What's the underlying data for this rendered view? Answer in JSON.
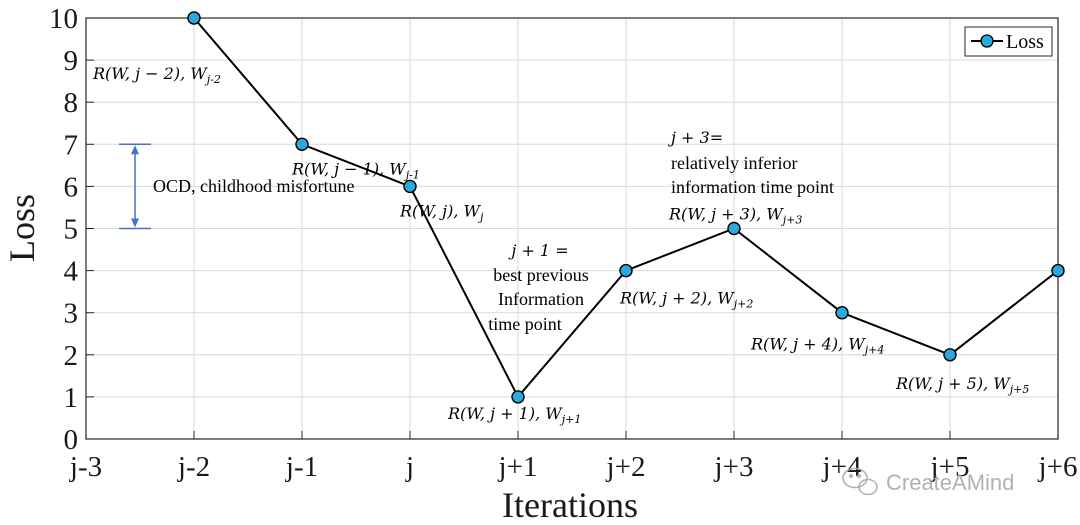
{
  "chart_data": {
    "type": "line",
    "xlabel": "Iterations",
    "ylabel": "Loss",
    "categories": [
      "j-3",
      "j-2",
      "j-1",
      "j",
      "j+1",
      "j+2",
      "j+3",
      "j+4",
      "j+5",
      "j+6"
    ],
    "ylim": [
      0,
      10
    ],
    "yticks": [
      0,
      1,
      2,
      3,
      4,
      5,
      6,
      7,
      8,
      9,
      10
    ],
    "grid": true,
    "legend_position": "top-right",
    "series": [
      {
        "name": "Loss",
        "color": "#29a9e0",
        "points": [
          {
            "x": "j-2",
            "y": 10
          },
          {
            "x": "j-1",
            "y": 7
          },
          {
            "x": "j",
            "y": 6
          },
          {
            "x": "j+1",
            "y": 1
          },
          {
            "x": "j+2",
            "y": 4
          },
          {
            "x": "j+3",
            "y": 5
          },
          {
            "x": "j+4",
            "y": 3
          },
          {
            "x": "j+5",
            "y": 2
          },
          {
            "x": "j+6",
            "y": 4
          }
        ]
      }
    ],
    "point_labels": [
      {
        "x": "j-2",
        "text": "R(W, j − 2), W",
        "sub": "j-2"
      },
      {
        "x": "j-1",
        "text": "R(W, j − 1), W",
        "sub": "j-1"
      },
      {
        "x": "j",
        "text": "R(W, j), W",
        "sub": "j"
      },
      {
        "x": "j+1",
        "text": "R(W, j + 1), W",
        "sub": "j+1"
      },
      {
        "x": "j+2",
        "text": "R(W, j + 2), W",
        "sub": "j+2"
      },
      {
        "x": "j+3",
        "text": "R(W, j + 3), W",
        "sub": "j+3"
      },
      {
        "x": "j+4",
        "text": "R(W, j + 4), W",
        "sub": "j+4"
      },
      {
        "x": "j+5",
        "text": "R(W, j + 5), W",
        "sub": "j+5"
      }
    ],
    "range_annotation": {
      "from": 5,
      "to": 7,
      "text": "OCD, childhood misfortune",
      "color": "#4472c4"
    },
    "notes": {
      "best": [
        "j + 1 =",
        "best previous",
        "Information",
        "time point"
      ],
      "inferior": [
        "j + 3=",
        "relatively inferior",
        "information time point"
      ]
    },
    "watermark": "CreateAMind"
  }
}
